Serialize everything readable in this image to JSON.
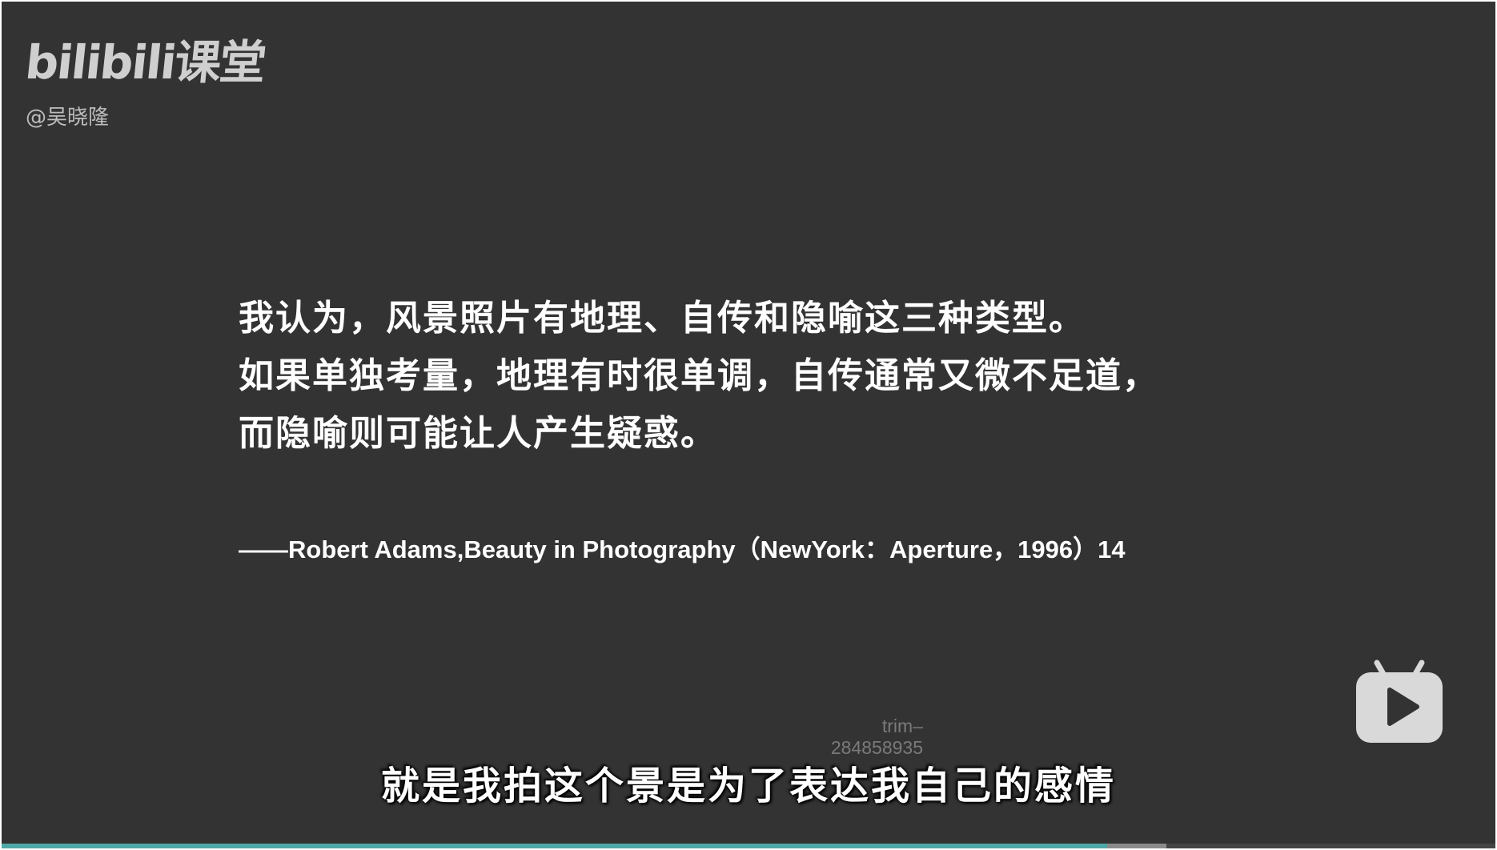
{
  "brand": {
    "logo_text": "bilibili课堂",
    "uploader": "@吴晓隆"
  },
  "quote": {
    "lines": [
      "我认为，风景照片有地理、自传和隐喻这三种类型。",
      "如果单独考量，地理有时很单调，自传通常又微不足道，",
      "而隐喻则可能让人产生疑惑。"
    ],
    "citation": "——Robert Adams,Beauty in Photography（NewYork：Aperture，1996）14"
  },
  "overlay": {
    "trim_label": "trim–\n284858935"
  },
  "subtitle": {
    "text": "就是我拍这个景是为了表达我自己的感情"
  },
  "player": {
    "progress_fraction": 0.74,
    "buffered_fraction": 0.04,
    "background_color": "#333333",
    "progress_color": "#4fa7a8",
    "play_icon": "bilibili-tv-play-icon"
  }
}
